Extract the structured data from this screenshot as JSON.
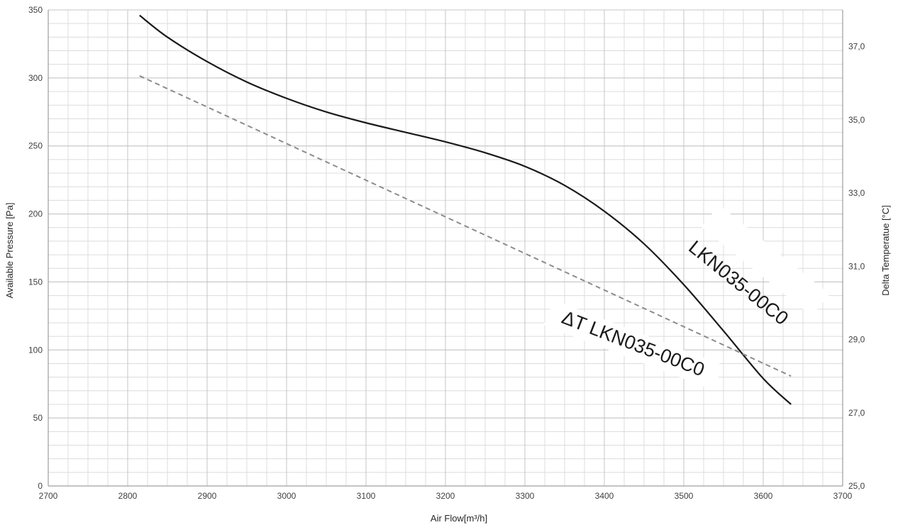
{
  "chart_data": {
    "type": "line",
    "title": "",
    "xlabel": "Air Flow[m³/h]",
    "ylabel": "Available Pressure [Pa]",
    "y2label": "Delta Temperatue [°C]",
    "xlim": [
      2700,
      3700
    ],
    "ylim": [
      0,
      350
    ],
    "y2lim": [
      25,
      38
    ],
    "x_ticks": [
      2700,
      2800,
      2900,
      3000,
      3100,
      3200,
      3300,
      3400,
      3500,
      3600,
      3700
    ],
    "y_ticks": [
      0,
      50,
      100,
      150,
      200,
      250,
      300,
      350
    ],
    "y2_ticks": [
      "25,0",
      "27,0",
      "29,0",
      "31,0",
      "33,0",
      "35,0",
      "37,0"
    ],
    "grid": true,
    "series": [
      {
        "name": "LKN035-00C0",
        "axis": "left",
        "style": "solid",
        "color": "#1a1a1a",
        "x": [
          2815,
          2850,
          2900,
          2950,
          3000,
          3050,
          3100,
          3150,
          3200,
          3250,
          3300,
          3350,
          3400,
          3450,
          3500,
          3550,
          3600,
          3635
        ],
        "y": [
          346,
          330,
          312,
          297,
          285,
          275,
          267,
          260,
          253,
          245,
          235,
          221,
          202,
          178,
          148,
          114,
          79,
          60
        ]
      },
      {
        "name": "ΔT LKN035-00C0",
        "axis": "right",
        "style": "dashed",
        "color": "#8c8c8c",
        "x": [
          2815,
          3635
        ],
        "y": [
          36.2,
          28.0
        ]
      }
    ]
  }
}
